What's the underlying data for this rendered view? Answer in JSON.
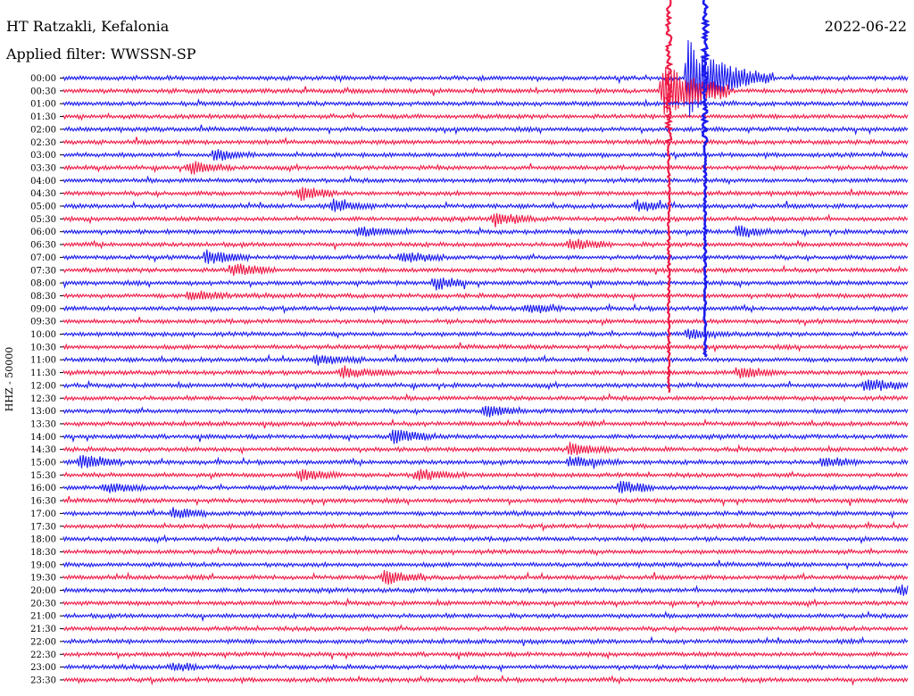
{
  "header": {
    "station": "HT Ratzakli, Kefalonia",
    "filter": "Applied filter: WWSSN-SP",
    "date": "2022-06-22"
  },
  "colors": {
    "blue": "#1a1aee",
    "red": "#ee1a46",
    "axis": "#000000",
    "background": "#ffffff"
  },
  "chart_data": {
    "type": "line",
    "title": "HT Ratzakli, Kefalonia",
    "subtitle": "Applied filter: WWSSN-SP",
    "ylabel": "HHZ - 50000",
    "xlabel": "",
    "grid": false,
    "legend": "none",
    "tick_labels": [
      "00:00",
      "00:30",
      "01:00",
      "01:30",
      "02:00",
      "02:30",
      "03:00",
      "03:30",
      "04:00",
      "04:30",
      "05:00",
      "05:30",
      "06:00",
      "06:30",
      "07:00",
      "07:30",
      "08:00",
      "08:30",
      "09:00",
      "09:30",
      "10:00",
      "10:30",
      "11:00",
      "11:30",
      "12:00",
      "12:30",
      "13:00",
      "13:30",
      "14:00",
      "14:30",
      "15:00",
      "15:30",
      "16:00",
      "16:30",
      "17:00",
      "17:30",
      "18:00",
      "18:30",
      "19:00",
      "19:30",
      "20:00",
      "20:30",
      "21:00",
      "21:30",
      "22:00",
      "22:30",
      "23:00",
      "23:30"
    ],
    "trace_colors": [
      "blue",
      "red"
    ],
    "events": [
      {
        "row": 1,
        "x": 0.71,
        "amp": 9,
        "decay": 0.05,
        "spread": 0.08
      },
      {
        "row": 0,
        "x": 0.74,
        "amp": 14,
        "decay": 0.04,
        "spread": 0.1
      },
      {
        "row": 6,
        "x": 0.18,
        "amp": 2.2,
        "decay": 0.02,
        "spread": 0.05
      },
      {
        "row": 7,
        "x": 0.15,
        "amp": 2.0,
        "decay": 0.03,
        "spread": 0.05
      },
      {
        "row": 9,
        "x": 0.28,
        "amp": 2.2,
        "decay": 0.03,
        "spread": 0.04
      },
      {
        "row": 10,
        "x": 0.32,
        "amp": 1.8,
        "decay": 0.03,
        "spread": 0.05
      },
      {
        "row": 10,
        "x": 0.68,
        "amp": 1.6,
        "decay": 0.03,
        "spread": 0.04
      },
      {
        "row": 11,
        "x": 0.51,
        "amp": 2.2,
        "decay": 0.03,
        "spread": 0.05
      },
      {
        "row": 12,
        "x": 0.35,
        "amp": 1.7,
        "decay": 0.03,
        "spread": 0.06
      },
      {
        "row": 12,
        "x": 0.8,
        "amp": 2.0,
        "decay": 0.02,
        "spread": 0.05
      },
      {
        "row": 13,
        "x": 0.6,
        "amp": 1.9,
        "decay": 0.03,
        "spread": 0.05
      },
      {
        "row": 14,
        "x": 0.17,
        "amp": 2.4,
        "decay": 0.03,
        "spread": 0.05
      },
      {
        "row": 14,
        "x": 0.4,
        "amp": 1.8,
        "decay": 0.03,
        "spread": 0.05
      },
      {
        "row": 15,
        "x": 0.2,
        "amp": 2.2,
        "decay": 0.03,
        "spread": 0.05
      },
      {
        "row": 16,
        "x": 0.44,
        "amp": 2.0,
        "decay": 0.03,
        "spread": 0.04
      },
      {
        "row": 17,
        "x": 0.15,
        "amp": 1.8,
        "decay": 0.03,
        "spread": 0.05
      },
      {
        "row": 18,
        "x": 0.55,
        "amp": 1.4,
        "decay": 0.03,
        "spread": 0.04
      },
      {
        "row": 20,
        "x": 0.74,
        "amp": 1.7,
        "decay": 0.03,
        "spread": 0.05
      },
      {
        "row": 22,
        "x": 0.3,
        "amp": 1.6,
        "decay": 0.03,
        "spread": 0.06
      },
      {
        "row": 23,
        "x": 0.33,
        "amp": 2.0,
        "decay": 0.03,
        "spread": 0.07
      },
      {
        "row": 23,
        "x": 0.8,
        "amp": 1.8,
        "decay": 0.03,
        "spread": 0.05
      },
      {
        "row": 24,
        "x": 0.95,
        "amp": 2.2,
        "decay": 0.03,
        "spread": 0.06
      },
      {
        "row": 26,
        "x": 0.5,
        "amp": 2.0,
        "decay": 0.03,
        "spread": 0.05
      },
      {
        "row": 28,
        "x": 0.39,
        "amp": 2.6,
        "decay": 0.03,
        "spread": 0.05
      },
      {
        "row": 29,
        "x": 0.6,
        "amp": 2.2,
        "decay": 0.03,
        "spread": 0.05
      },
      {
        "row": 30,
        "x": 0.02,
        "amp": 2.4,
        "decay": 0.03,
        "spread": 0.05
      },
      {
        "row": 30,
        "x": 0.6,
        "amp": 2.0,
        "decay": 0.03,
        "spread": 0.06
      },
      {
        "row": 30,
        "x": 0.9,
        "amp": 1.7,
        "decay": 0.03,
        "spread": 0.04
      },
      {
        "row": 31,
        "x": 0.28,
        "amp": 1.8,
        "decay": 0.03,
        "spread": 0.05
      },
      {
        "row": 31,
        "x": 0.42,
        "amp": 1.8,
        "decay": 0.03,
        "spread": 0.06
      },
      {
        "row": 32,
        "x": 0.05,
        "amp": 1.8,
        "decay": 0.03,
        "spread": 0.05
      },
      {
        "row": 32,
        "x": 0.66,
        "amp": 2.0,
        "decay": 0.03,
        "spread": 0.04
      },
      {
        "row": 34,
        "x": 0.13,
        "amp": 1.8,
        "decay": 0.03,
        "spread": 0.04
      },
      {
        "row": 39,
        "x": 0.38,
        "amp": 2.2,
        "decay": 0.03,
        "spread": 0.05
      },
      {
        "row": 40,
        "x": 0.99,
        "amp": 1.8,
        "decay": 0.02,
        "spread": 0.03
      },
      {
        "row": 46,
        "x": 0.13,
        "amp": 1.3,
        "decay": 0.03,
        "spread": 0.03
      }
    ]
  }
}
